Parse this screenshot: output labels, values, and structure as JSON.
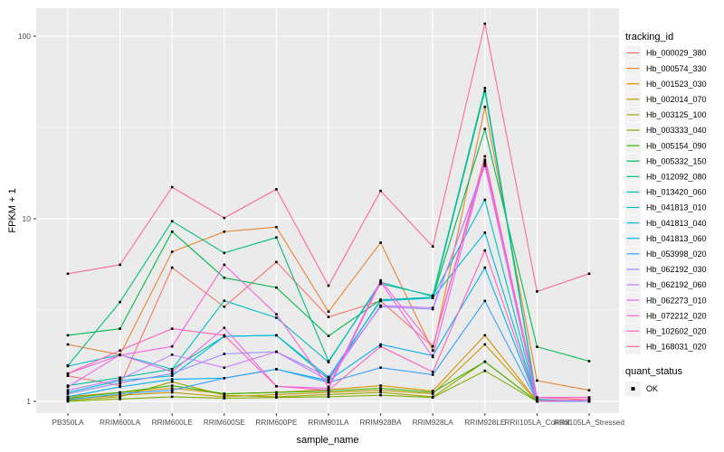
{
  "chart_data": {
    "type": "line",
    "title": "",
    "xlabel": "sample_name",
    "ylabel": "FPKM + 1",
    "y_scale": "log10",
    "ylim": [
      1,
      140
    ],
    "grid": "on",
    "legend_position": "right",
    "legend_title": "tracking_id",
    "point_shape": "filled-square",
    "point_color": "#000000",
    "y_ticks": [
      {
        "label": "100",
        "value": 100
      },
      {
        "label": "10",
        "value": 10
      },
      {
        "label": "1",
        "value": 1
      }
    ],
    "minor_gridline_values": [
      31.62,
      3.162
    ],
    "categories": [
      "PB350LA",
      "RRIM600LA",
      "RRIM600LE",
      "RRIM600SE",
      "RRIM600PE",
      "RRIM901LA",
      "RRIM928BA",
      "RRIM928LA",
      "RRIM928LE",
      "RRII105LA_Control",
      "RRII105LA_Stressed"
    ],
    "series": [
      {
        "name": "Hb_000029_380",
        "color": "#F8766D",
        "values": [
          1.38,
          1.22,
          5.4,
          3.3,
          5.8,
          2.9,
          3.55,
          2.0,
          22,
          1.05,
          1.02
        ]
      },
      {
        "name": "Hb_000574_330",
        "color": "#EA8331",
        "values": [
          2.05,
          1.8,
          6.6,
          8.5,
          9.0,
          3.1,
          7.4,
          1.9,
          41,
          1.3,
          1.15
        ]
      },
      {
        "name": "Hb_001523_030",
        "color": "#D89000",
        "values": [
          1.06,
          1.12,
          1.18,
          1.1,
          1.12,
          1.16,
          1.22,
          1.14,
          2.3,
          1.0,
          1.02
        ]
      },
      {
        "name": "Hb_002014_070",
        "color": "#C09B00",
        "values": [
          1.03,
          1.08,
          1.12,
          1.06,
          1.09,
          1.12,
          1.15,
          1.1,
          2.05,
          1.0,
          1.0
        ]
      },
      {
        "name": "Hb_003125_100",
        "color": "#A3A500",
        "values": [
          1.01,
          1.06,
          1.28,
          1.08,
          1.06,
          1.09,
          1.12,
          1.06,
          1.65,
          1.0,
          1.0
        ]
      },
      {
        "name": "Hb_003333_040",
        "color": "#7CAE00",
        "values": [
          1.0,
          1.03,
          1.06,
          1.04,
          1.05,
          1.06,
          1.08,
          1.05,
          1.47,
          1.0,
          1.0
        ]
      },
      {
        "name": "Hb_005154_090",
        "color": "#39B600",
        "values": [
          1.04,
          1.12,
          1.22,
          1.1,
          1.12,
          1.14,
          1.18,
          1.12,
          1.65,
          1.0,
          1.0
        ]
      },
      {
        "name": "Hb_005332_150",
        "color": "#00BB4E",
        "values": [
          2.3,
          2.5,
          8.5,
          4.75,
          4.2,
          2.28,
          3.6,
          3.7,
          31,
          1.99,
          1.66
        ]
      },
      {
        "name": "Hb_012092_080",
        "color": "#00BF7D",
        "values": [
          1.57,
          3.5,
          9.7,
          6.5,
          7.9,
          1.66,
          4.4,
          3.8,
          52,
          1.02,
          1.0
        ]
      },
      {
        "name": "Hb_013420_060",
        "color": "#00C1A3",
        "values": [
          1.22,
          1.35,
          1.5,
          2.27,
          2.3,
          1.32,
          3.6,
          3.72,
          50,
          1.0,
          1.0
        ]
      },
      {
        "name": "Hb_041813_010",
        "color": "#00BFC4",
        "values": [
          1.56,
          1.8,
          1.5,
          3.56,
          2.87,
          1.64,
          4.5,
          3.75,
          12.7,
          1.0,
          1.0
        ]
      },
      {
        "name": "Hb_041813_040",
        "color": "#00BAE0",
        "values": [
          1.12,
          1.3,
          1.38,
          2.27,
          2.3,
          1.36,
          3.55,
          3.68,
          8.4,
          1.0,
          1.0
        ]
      },
      {
        "name": "Hb_041813_060",
        "color": "#00B0F6",
        "values": [
          1.06,
          1.2,
          1.32,
          1.34,
          1.5,
          1.3,
          2.05,
          1.78,
          5.4,
          1.0,
          1.0
        ]
      },
      {
        "name": "Hb_053998_020",
        "color": "#35A2FF",
        "values": [
          1.02,
          1.1,
          1.15,
          1.34,
          1.5,
          1.27,
          1.53,
          1.4,
          3.55,
          1.0,
          1.0
        ]
      },
      {
        "name": "Hb_062192_030",
        "color": "#9590FF",
        "values": [
          1.1,
          1.26,
          1.42,
          1.82,
          1.87,
          1.36,
          3.3,
          3.2,
          20,
          1.03,
          1.0
        ]
      },
      {
        "name": "Hb_062192_060",
        "color": "#C77CFF",
        "values": [
          1.15,
          1.32,
          1.8,
          1.53,
          1.87,
          1.3,
          3.35,
          3.25,
          19.5,
          1.0,
          1.02
        ]
      },
      {
        "name": "Hb_062273_010",
        "color": "#E76BF3",
        "values": [
          1.2,
          1.8,
          1.45,
          2.53,
          1.21,
          1.18,
          4.5,
          1.75,
          20.5,
          1.05,
          1.05
        ]
      },
      {
        "name": "Hb_072212_020",
        "color": "#FA62DB",
        "values": [
          1.42,
          1.79,
          2.0,
          5.6,
          3.0,
          1.2,
          4.6,
          2.0,
          21,
          1.05,
          1.05
        ]
      },
      {
        "name": "Hb_102602_020",
        "color": "#FF62BC",
        "values": [
          1.42,
          1.9,
          2.5,
          2.3,
          1.21,
          1.15,
          2.0,
          1.45,
          6.7,
          1.0,
          1.02
        ]
      },
      {
        "name": "Hb_168031_020",
        "color": "#FF6A98",
        "values": [
          5.0,
          5.6,
          14.9,
          10.1,
          14.5,
          4.3,
          14.2,
          7.05,
          117,
          4.0,
          5.0
        ]
      }
    ],
    "legend2": {
      "title": "quant_status",
      "items": [
        {
          "label": "OK",
          "marker": "black-square"
        }
      ]
    },
    "style": {
      "panel_bg": "#EBEBEB",
      "grid_color": "#FFFFFF",
      "tick_mark_color": "#333333",
      "tick_label_color": "#4D4D4D",
      "axis_title_color": "#000000",
      "legend_key_bg": "#F2F2F2",
      "point_color": "#000000"
    }
  }
}
